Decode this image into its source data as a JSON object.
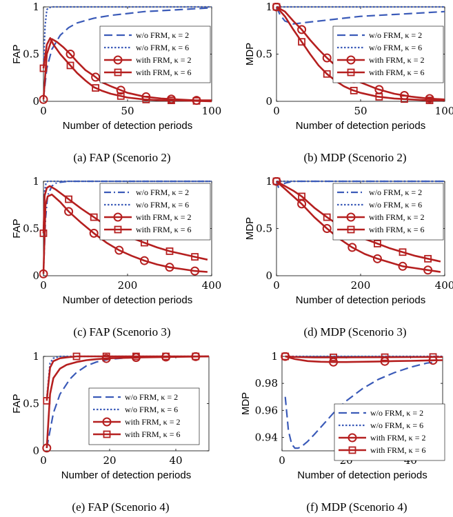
{
  "colors": {
    "blue": "#3a5ab8",
    "red": "#b51f1f"
  },
  "legend": [
    "w/o FRM, κ = 2",
    "w/o FRM, κ = 6",
    "with FRM, κ = 2",
    "with FRM, κ = 6"
  ],
  "chart_data": [
    {
      "id": "a",
      "type": "line",
      "caption": "(a)  FAP (Scenorio 2)",
      "xlabel": "Number of detection periods",
      "ylabel": "FAP",
      "xlim": [
        0,
        100
      ],
      "ylim": [
        0,
        1
      ],
      "xticks": [
        "0",
        "50",
        "100"
      ],
      "xtick_values": [
        0,
        50,
        100
      ],
      "yticks": [
        "0",
        "0.5",
        "1"
      ],
      "ytick_values": [
        0,
        0.5,
        1
      ],
      "legend_position": "top-right",
      "series": [
        {
          "label_index": 0,
          "style": "dash",
          "color": "blue",
          "x": [
            0,
            2,
            5,
            10,
            15,
            20,
            30,
            40,
            50,
            60,
            70,
            80,
            90,
            100
          ],
          "y": [
            0.03,
            0.35,
            0.55,
            0.7,
            0.78,
            0.83,
            0.88,
            0.91,
            0.93,
            0.95,
            0.96,
            0.97,
            0.98,
            0.99
          ]
        },
        {
          "label_index": 1,
          "style": "dot",
          "color": "blue",
          "x": [
            0,
            1,
            2,
            3,
            5,
            100
          ],
          "y": [
            0.35,
            0.8,
            0.97,
            0.99,
            1.0,
            1.0
          ]
        },
        {
          "label_index": 2,
          "style": "circle",
          "color": "red",
          "x": [
            0,
            2,
            5,
            8,
            12,
            16,
            20,
            25,
            30,
            35,
            40,
            50,
            60,
            70,
            80,
            90,
            100
          ],
          "y": [
            0.02,
            0.5,
            0.66,
            0.63,
            0.57,
            0.5,
            0.42,
            0.33,
            0.27,
            0.2,
            0.16,
            0.09,
            0.05,
            0.03,
            0.02,
            0.01,
            0.01
          ],
          "markers_x": [
            0,
            16,
            31,
            46,
            61,
            76,
            91
          ]
        },
        {
          "label_index": 3,
          "style": "square",
          "color": "red",
          "x": [
            0,
            2,
            4,
            6,
            10,
            16,
            20,
            25,
            30,
            35,
            40,
            50,
            60,
            70,
            80,
            90,
            100
          ],
          "y": [
            0.35,
            0.6,
            0.67,
            0.6,
            0.5,
            0.38,
            0.3,
            0.22,
            0.15,
            0.11,
            0.08,
            0.04,
            0.02,
            0.01,
            0.01,
            0.005,
            0.0
          ],
          "markers_x": [
            0,
            16,
            31,
            46,
            61,
            76,
            91
          ]
        }
      ]
    },
    {
      "id": "b",
      "type": "line",
      "caption": "(b)  MDP (Scenorio 2)",
      "xlabel": "Number of detection periods",
      "ylabel": "MDP",
      "xlim": [
        0,
        100
      ],
      "ylim": [
        0,
        1
      ],
      "xticks": [
        "0",
        "50",
        "100"
      ],
      "xtick_values": [
        0,
        50,
        100
      ],
      "yticks": [
        "0",
        "0.5",
        "1"
      ],
      "ytick_values": [
        0,
        0.5,
        1
      ],
      "legend_position": "top-right",
      "series": [
        {
          "label_index": 0,
          "style": "dash",
          "color": "blue",
          "x": [
            0,
            2,
            5,
            10,
            15,
            20,
            30,
            40,
            50,
            60,
            70,
            80,
            90,
            100
          ],
          "y": [
            1.0,
            0.92,
            0.85,
            0.82,
            0.83,
            0.84,
            0.86,
            0.88,
            0.9,
            0.91,
            0.92,
            0.93,
            0.94,
            0.95
          ]
        },
        {
          "label_index": 1,
          "style": "dot",
          "color": "blue",
          "x": [
            0,
            100
          ],
          "y": [
            1.0,
            1.0
          ]
        },
        {
          "label_index": 2,
          "style": "circle",
          "color": "red",
          "x": [
            0,
            5,
            10,
            15,
            20,
            25,
            30,
            35,
            40,
            45,
            50,
            60,
            70,
            80,
            90,
            100
          ],
          "y": [
            1.0,
            0.95,
            0.85,
            0.76,
            0.65,
            0.55,
            0.46,
            0.38,
            0.31,
            0.25,
            0.2,
            0.13,
            0.08,
            0.05,
            0.03,
            0.02
          ],
          "markers_x": [
            0,
            15,
            30,
            46,
            61,
            76,
            91
          ]
        },
        {
          "label_index": 3,
          "style": "square",
          "color": "red",
          "x": [
            0,
            5,
            10,
            15,
            20,
            25,
            30,
            35,
            40,
            45,
            50,
            60,
            70,
            80,
            90,
            100
          ],
          "y": [
            1.0,
            0.9,
            0.76,
            0.63,
            0.5,
            0.38,
            0.29,
            0.22,
            0.16,
            0.12,
            0.09,
            0.05,
            0.03,
            0.02,
            0.01,
            0.01
          ],
          "markers_x": [
            0,
            15,
            30,
            46,
            61,
            76,
            91
          ]
        }
      ]
    },
    {
      "id": "c",
      "type": "line",
      "caption": "(c)  FAP (Scenorio 3)",
      "xlabel": "Number of detection periods",
      "ylabel": "FAP",
      "xlim": [
        0,
        400
      ],
      "ylim": [
        0,
        1
      ],
      "xticks": [
        "0",
        "200",
        "400"
      ],
      "xtick_values": [
        0,
        200,
        400
      ],
      "yticks": [
        "0",
        "0.5",
        "1"
      ],
      "ytick_values": [
        0,
        0.5,
        1
      ],
      "legend_position": "top-right",
      "series": [
        {
          "label_index": 0,
          "style": "dashdot",
          "color": "blue",
          "x": [
            0,
            5,
            10,
            20,
            30,
            40,
            60,
            400
          ],
          "y": [
            0.03,
            0.6,
            0.85,
            0.95,
            0.98,
            0.99,
            1.0,
            1.0
          ]
        },
        {
          "label_index": 1,
          "style": "dot",
          "color": "blue",
          "x": [
            0,
            3,
            6,
            10,
            400
          ],
          "y": [
            0.45,
            0.9,
            0.98,
            1.0,
            1.0
          ]
        },
        {
          "label_index": 2,
          "style": "circle",
          "color": "red",
          "x": [
            0,
            5,
            10,
            20,
            40,
            60,
            90,
            120,
            150,
            180,
            210,
            240,
            270,
            300,
            330,
            360,
            390
          ],
          "y": [
            0.02,
            0.75,
            0.84,
            0.86,
            0.78,
            0.68,
            0.56,
            0.45,
            0.35,
            0.27,
            0.21,
            0.16,
            0.12,
            0.09,
            0.07,
            0.05,
            0.04
          ],
          "markers_x": [
            0,
            60,
            120,
            180,
            240,
            300,
            360
          ]
        },
        {
          "label_index": 3,
          "style": "square",
          "color": "red",
          "x": [
            0,
            3,
            8,
            15,
            30,
            60,
            90,
            120,
            150,
            180,
            210,
            240,
            270,
            300,
            330,
            360,
            390
          ],
          "y": [
            0.45,
            0.85,
            0.93,
            0.95,
            0.91,
            0.81,
            0.71,
            0.62,
            0.53,
            0.46,
            0.4,
            0.35,
            0.3,
            0.26,
            0.23,
            0.2,
            0.17
          ],
          "markers_x": [
            0,
            60,
            120,
            180,
            240,
            300,
            360
          ]
        }
      ]
    },
    {
      "id": "d",
      "type": "line",
      "caption": "(d)  MDP (Scenorio 3)",
      "xlabel": "Number of detection periods",
      "ylabel": "MDP",
      "xlim": [
        0,
        400
      ],
      "ylim": [
        0,
        1
      ],
      "xticks": [
        "0",
        "200",
        "400"
      ],
      "xtick_values": [
        0,
        200,
        400
      ],
      "yticks": [
        "0",
        "0.5",
        "1"
      ],
      "ytick_values": [
        0,
        0.5,
        1
      ],
      "legend_position": "top-right",
      "series": [
        {
          "label_index": 0,
          "style": "dashdot",
          "color": "blue",
          "x": [
            0,
            5,
            10,
            20,
            40,
            400
          ],
          "y": [
            1.0,
            0.93,
            0.94,
            0.98,
            1.0,
            1.0
          ]
        },
        {
          "label_index": 1,
          "style": "dot",
          "color": "blue",
          "x": [
            0,
            400
          ],
          "y": [
            1.0,
            1.0
          ]
        },
        {
          "label_index": 2,
          "style": "circle",
          "color": "red",
          "x": [
            0,
            20,
            40,
            60,
            90,
            120,
            150,
            180,
            210,
            240,
            270,
            300,
            330,
            360,
            390
          ],
          "y": [
            1.0,
            0.92,
            0.84,
            0.76,
            0.62,
            0.5,
            0.39,
            0.3,
            0.23,
            0.18,
            0.14,
            0.1,
            0.08,
            0.06,
            0.04
          ],
          "markers_x": [
            0,
            60,
            120,
            180,
            240,
            300,
            360
          ]
        },
        {
          "label_index": 3,
          "style": "square",
          "color": "red",
          "x": [
            0,
            20,
            40,
            60,
            90,
            120,
            150,
            180,
            210,
            240,
            270,
            300,
            330,
            360,
            390
          ],
          "y": [
            1.0,
            0.95,
            0.9,
            0.84,
            0.72,
            0.62,
            0.53,
            0.46,
            0.39,
            0.34,
            0.29,
            0.25,
            0.21,
            0.18,
            0.15
          ],
          "markers_x": [
            0,
            60,
            120,
            180,
            240,
            300,
            360
          ]
        }
      ]
    },
    {
      "id": "e",
      "type": "line",
      "caption": "(e)  FAP (Scenorio 4)",
      "xlabel": "Number of detection periods",
      "ylabel": "FAP",
      "xlim": [
        0,
        50
      ],
      "ylim": [
        0,
        1
      ],
      "xticks": [
        "0",
        "20",
        "40"
      ],
      "xtick_values": [
        0,
        20,
        40
      ],
      "yticks": [
        "0",
        "0.5",
        "1"
      ],
      "ytick_values": [
        0,
        0.5,
        1
      ],
      "legend_position": "right",
      "series": [
        {
          "label_index": 0,
          "style": "dash",
          "color": "blue",
          "x": [
            1,
            3,
            5,
            8,
            10,
            13,
            16,
            20,
            25,
            30,
            35,
            40,
            45,
            50
          ],
          "y": [
            0.03,
            0.4,
            0.6,
            0.76,
            0.83,
            0.9,
            0.94,
            0.97,
            0.985,
            0.99,
            0.995,
            0.997,
            0.999,
            1.0
          ]
        },
        {
          "label_index": 1,
          "style": "dot",
          "color": "blue",
          "x": [
            1,
            2,
            3,
            5,
            50
          ],
          "y": [
            0.55,
            0.93,
            0.98,
            1.0,
            1.0
          ]
        },
        {
          "label_index": 2,
          "style": "circle",
          "color": "red",
          "x": [
            1,
            2,
            3,
            5,
            7,
            10,
            13,
            16,
            20,
            25,
            30,
            40,
            50
          ],
          "y": [
            0.03,
            0.6,
            0.77,
            0.87,
            0.91,
            0.94,
            0.96,
            0.97,
            0.98,
            0.985,
            0.99,
            0.995,
            1.0
          ],
          "markers_x": [
            1,
            19,
            28,
            37,
            46
          ]
        },
        {
          "label_index": 3,
          "style": "square",
          "color": "red",
          "x": [
            1,
            2,
            3,
            5,
            7,
            10,
            20,
            50
          ],
          "y": [
            0.53,
            0.88,
            0.95,
            0.98,
            0.99,
            1.0,
            1.0,
            1.0
          ],
          "markers_x": [
            1,
            10,
            19,
            28,
            37,
            46
          ]
        }
      ]
    },
    {
      "id": "f",
      "type": "line",
      "caption": "(f)  MDP (Scenorio 4)",
      "xlabel": "Number of detection periods",
      "ylabel": "MDP",
      "xlim": [
        0,
        50
      ],
      "ylim": [
        0.93,
        1
      ],
      "xticks": [
        "0",
        "20",
        "40"
      ],
      "xtick_values": [
        0,
        20,
        40
      ],
      "yticks": [
        "0.94",
        "0.96",
        "0.98",
        "1"
      ],
      "ytick_values": [
        0.94,
        0.96,
        0.98,
        1
      ],
      "legend_position": "bottom-right",
      "series": [
        {
          "label_index": 0,
          "style": "dash",
          "color": "blue",
          "x": [
            1,
            2,
            3,
            4,
            5,
            6,
            8,
            10,
            13,
            16,
            20,
            25,
            30,
            35,
            40,
            45,
            48
          ],
          "y": [
            0.97,
            0.945,
            0.935,
            0.932,
            0.932,
            0.933,
            0.937,
            0.942,
            0.95,
            0.958,
            0.967,
            0.976,
            0.983,
            0.988,
            0.992,
            0.995,
            0.996
          ]
        },
        {
          "label_index": 1,
          "style": "dot",
          "color": "blue",
          "x": [
            1,
            50
          ],
          "y": [
            1.0,
            1.0
          ]
        },
        {
          "label_index": 2,
          "style": "circle",
          "color": "red",
          "x": [
            1,
            4,
            8,
            12,
            16,
            20,
            25,
            30,
            35,
            40,
            45,
            50
          ],
          "y": [
            1.0,
            0.998,
            0.9965,
            0.996,
            0.9958,
            0.9958,
            0.996,
            0.9962,
            0.9965,
            0.9967,
            0.997,
            0.9972
          ],
          "markers_x": [
            1,
            16,
            32,
            47
          ]
        },
        {
          "label_index": 3,
          "style": "square",
          "color": "red",
          "x": [
            1,
            5,
            10,
            20,
            30,
            40,
            50
          ],
          "y": [
            1.0,
            0.9995,
            0.9993,
            0.9993,
            0.9994,
            0.9995,
            0.9996
          ],
          "markers_x": [
            1,
            16,
            32,
            47
          ]
        }
      ]
    }
  ]
}
